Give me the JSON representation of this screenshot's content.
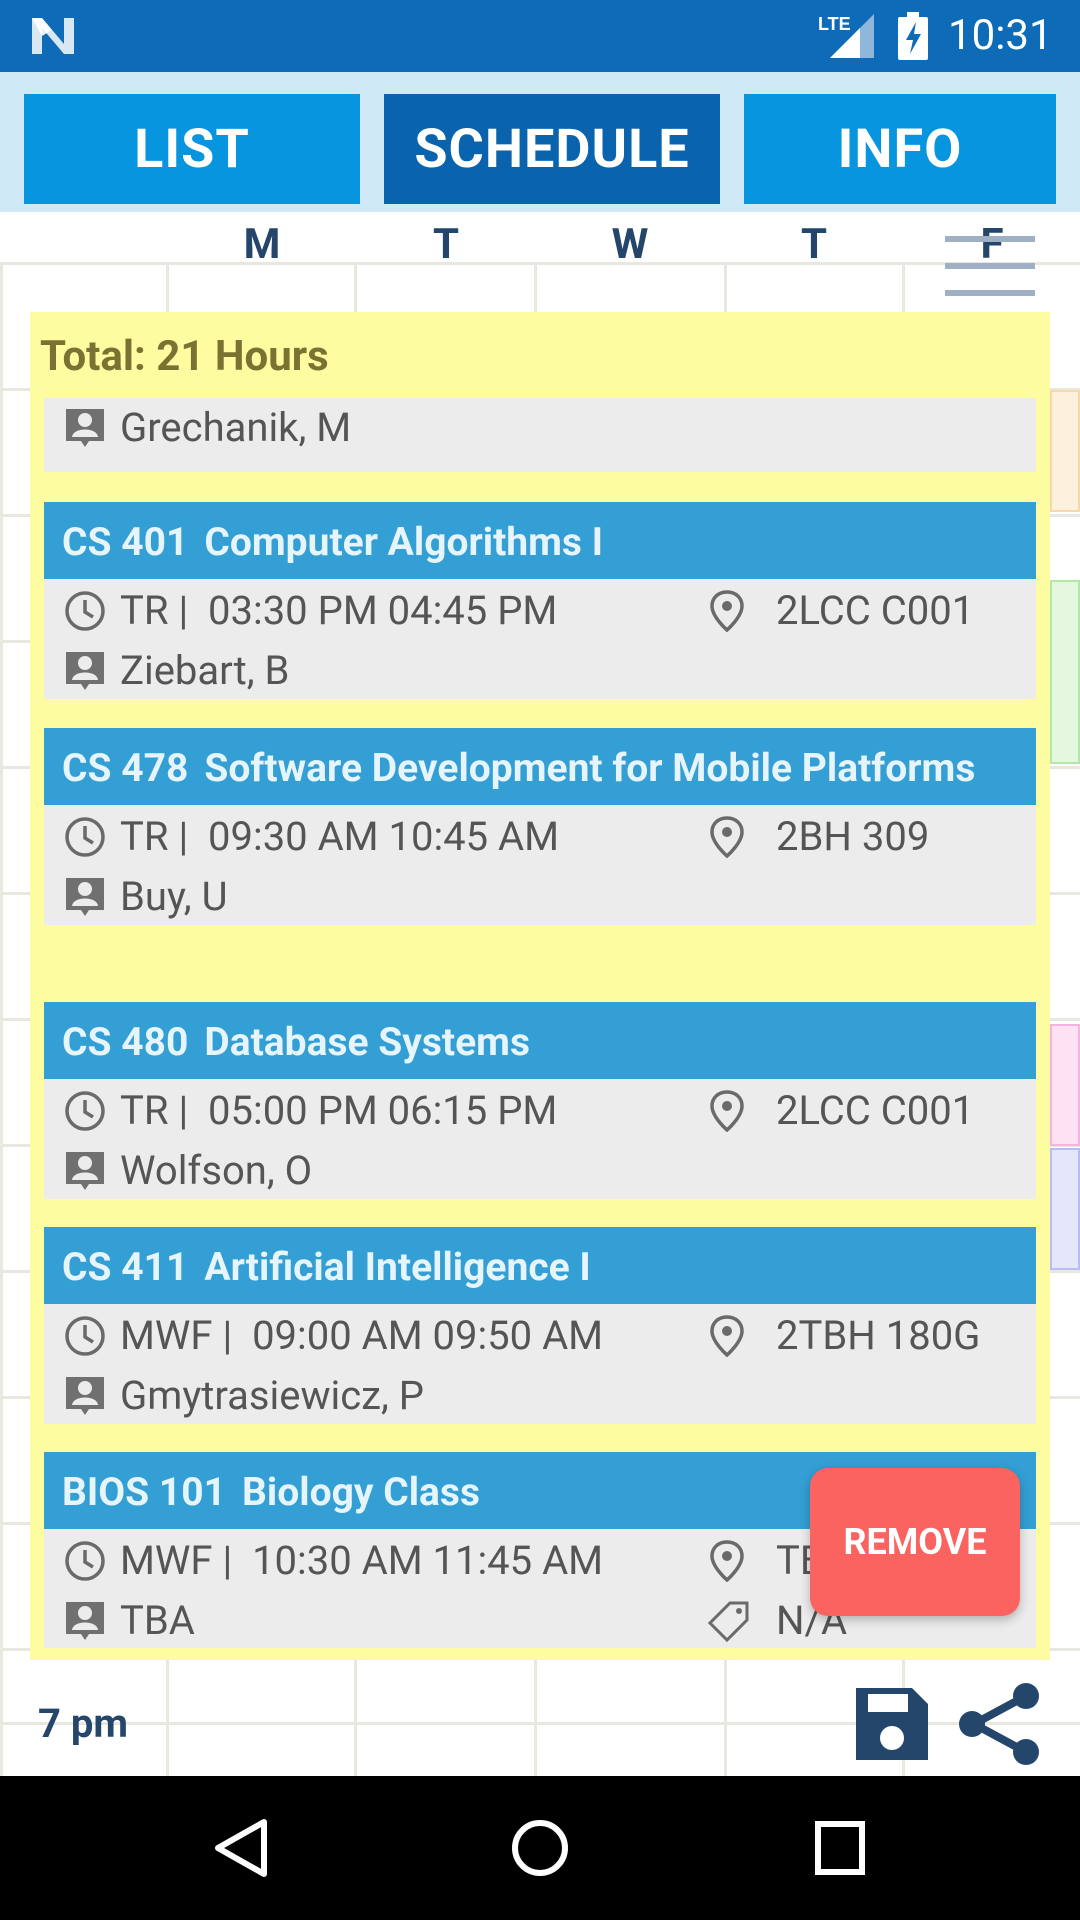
{
  "status_bar": {
    "time": "10:31",
    "network": "LTE",
    "icons": [
      "n-logo-icon",
      "lte-signal-icon",
      "battery-charging-icon"
    ]
  },
  "tabs": [
    {
      "label": "LIST",
      "active": false
    },
    {
      "label": "SCHEDULE",
      "active": true
    },
    {
      "label": "INFO",
      "active": false
    }
  ],
  "schedule": {
    "days": [
      "M",
      "T",
      "W",
      "T",
      "F"
    ],
    "time_label": "7 pm"
  },
  "panel": {
    "total": "Total: 21 Hours",
    "partial_instructor": "Grechanik, M",
    "courses": [
      {
        "code": "CS 401",
        "name": "Computer Algorithms I",
        "days": "TR |",
        "time": "03:30 PM 04:45 PM",
        "location": "2LCC C001",
        "instructor": "Ziebart, B"
      },
      {
        "code": "CS 478",
        "name": "Software Development for Mobile Platforms",
        "days": "TR |",
        "time": "09:30 AM 10:45 AM",
        "location": "2BH 309",
        "instructor": "Buy, U"
      },
      {
        "code": "CS 480",
        "name": "Database Systems",
        "days": "TR |",
        "time": "05:00 PM 06:15 PM",
        "location": "2LCC C001",
        "instructor": "Wolfson, O"
      },
      {
        "code": "CS 411",
        "name": "Artificial Intelligence I",
        "days": "MWF |",
        "time": "09:00 AM 09:50 AM",
        "location": "2TBH 180G",
        "instructor": "Gmytrasiewicz, P"
      },
      {
        "code": "BIOS 101",
        "name": "Biology Class",
        "days": "MWF |",
        "time": "10:30 AM 11:45 AM",
        "location": "TBA",
        "instructor": "TBA",
        "tag": "N/A"
      }
    ]
  },
  "remove_label": "REMOVE",
  "colors": {
    "status_bar": "#0d6bb8",
    "tab": "#0795df",
    "tab_active": "#0a63ad",
    "panel": "#fdfca0",
    "card_header": "#339fd4",
    "remove": "#fa6360"
  }
}
